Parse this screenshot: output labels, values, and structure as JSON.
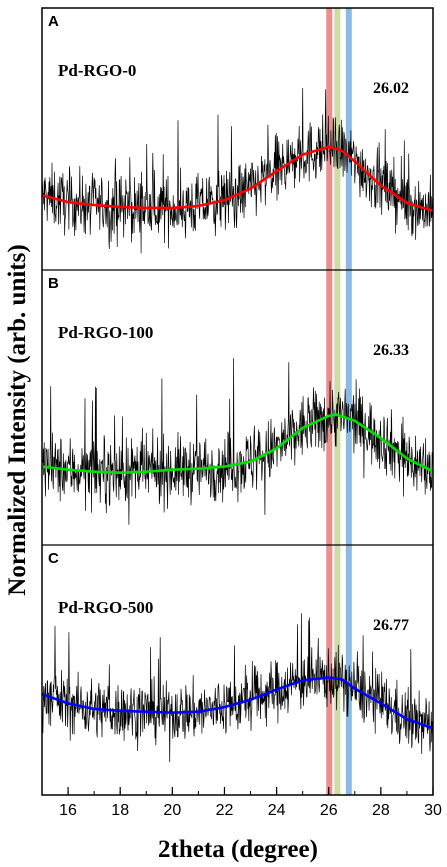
{
  "chart_data": {
    "type": "line",
    "xlabel": "2theta (degree)",
    "ylabel": "Normalized Intensity (arb. units)",
    "xlim": [
      15,
      30
    ],
    "x_ticks": [
      16,
      18,
      20,
      22,
      24,
      26,
      28,
      30
    ],
    "x_tick_labels": [
      "16",
      "18",
      "20",
      "22",
      "24",
      "26",
      "28",
      "30"
    ],
    "reference_lines": [
      {
        "x": 26.02,
        "color": "#f08080"
      },
      {
        "x": 26.33,
        "color": "#c8d89a"
      },
      {
        "x": 26.77,
        "color": "#7fb2e0"
      }
    ],
    "panels": [
      {
        "letter": "A",
        "sample": "Pd-RGO-0",
        "peak_label": "26.02",
        "fit_color": "#ff0000",
        "fit": {
          "x": [
            15,
            16,
            17,
            18,
            19,
            20,
            21,
            22,
            23,
            24,
            25,
            26,
            26.5,
            27,
            28,
            29,
            30
          ],
          "y": [
            0.5,
            0.43,
            0.4,
            0.38,
            0.37,
            0.37,
            0.39,
            0.45,
            0.57,
            0.75,
            0.92,
            1.0,
            0.96,
            0.85,
            0.6,
            0.42,
            0.34
          ]
        }
      },
      {
        "letter": "B",
        "sample": "Pd-RGO-100",
        "peak_label": "26.33",
        "fit_color": "#00e000",
        "fit": {
          "x": [
            15,
            16,
            17,
            18,
            19,
            20,
            21,
            22,
            23,
            24,
            25,
            26,
            26.3,
            27,
            28,
            29,
            30
          ],
          "y": [
            0.5,
            0.47,
            0.45,
            0.44,
            0.45,
            0.47,
            0.48,
            0.5,
            0.55,
            0.68,
            0.88,
            1.0,
            1.01,
            0.95,
            0.78,
            0.58,
            0.45
          ]
        }
      },
      {
        "letter": "C",
        "sample": "Pd-RGO-500",
        "peak_label": "26.77",
        "fit_color": "#0000ff",
        "fit": {
          "x": [
            15,
            16,
            17,
            18,
            19,
            20,
            21,
            22,
            23,
            24,
            25,
            26,
            26.5,
            27,
            28,
            29,
            30
          ],
          "y": [
            0.82,
            0.72,
            0.66,
            0.64,
            0.63,
            0.62,
            0.63,
            0.68,
            0.76,
            0.87,
            0.97,
            1.0,
            0.98,
            0.88,
            0.72,
            0.55,
            0.45
          ]
        }
      }
    ]
  }
}
